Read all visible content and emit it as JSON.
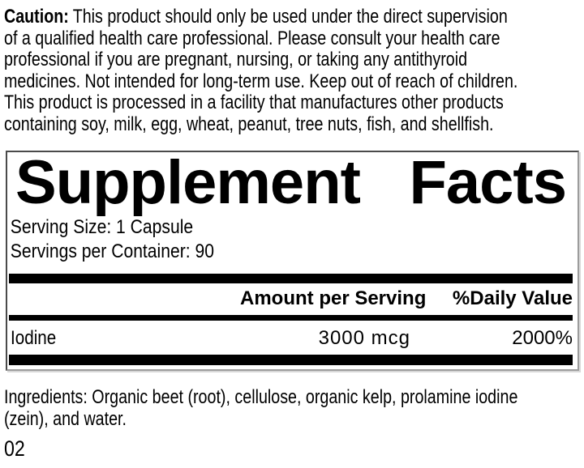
{
  "caution": {
    "label": "Caution:",
    "lines": [
      "This product should only be used under the direct supervision",
      "of a qualified health care professional. Please consult your health care",
      "professional if you are pregnant, nursing, or taking any antithyroid",
      "medicines. Not intended for long-term use. Keep out of reach of children.",
      "This product is processed in a facility that manufactures other products",
      "containing soy, milk, egg, wheat, peanut, tree nuts, fish, and shellfish."
    ]
  },
  "panel": {
    "title_word1": "Supplement",
    "title_word2": "Facts",
    "serving_size": "Serving Size: 1 Capsule",
    "servings_per_container": "Servings per Container: 90",
    "columns": {
      "amount": "Amount per Serving",
      "daily_value": "%Daily Value"
    },
    "rows": [
      {
        "name": "Iodine",
        "amount": "3000 mcg",
        "daily_value": "2000%"
      }
    ]
  },
  "ingredients": {
    "lines": [
      "Ingredients: Organic beet (root), cellulose, organic kelp, prolamine iodine",
      "(zein), and water."
    ]
  },
  "footer": {
    "code": "02"
  },
  "colors": {
    "background": "#ffffff",
    "text": "#000000",
    "bar": "#000000",
    "border_dark": "#4a4a4a",
    "border_light": "#9c9c9c"
  }
}
